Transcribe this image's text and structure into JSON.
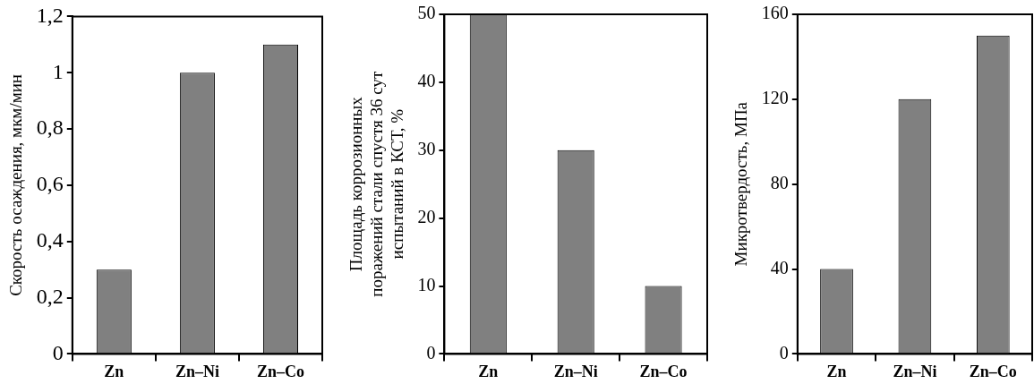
{
  "chart_data": [
    {
      "type": "bar",
      "ylabel": "Скорость осаждения, мкм/мин",
      "categories": [
        "Zn",
        "Zn–Ni",
        "Zn–Co"
      ],
      "values": [
        0.3,
        1,
        1.1
      ],
      "color": "#808080",
      "ylim": [
        0,
        1.2
      ],
      "yticks": [
        0,
        {
          "value": 0.2,
          "label": "0,2"
        },
        {
          "value": 0.4,
          "label": "0,4"
        },
        {
          "value": 0.6,
          "label": "0,6"
        },
        {
          "value": 0.8,
          "label": "0,8"
        },
        1,
        {
          "value": 1.2,
          "label": "1,2"
        }
      ],
      "grid": false,
      "legend": false
    },
    {
      "type": "bar",
      "ylabel": "Площадь коррозионных\nпоражений стали спустя 36 сут\nиспытаний в КСТ, %",
      "categories": [
        "Zn",
        "Zn–Ni",
        "Zn–Co"
      ],
      "values": [
        50,
        30,
        10
      ],
      "color": "#808080",
      "ylim": [
        0,
        50
      ],
      "yticks": [
        0,
        10,
        20,
        30,
        40,
        50
      ],
      "grid": false,
      "legend": false
    },
    {
      "type": "bar",
      "ylabel": "Микротвердость, МПа",
      "categories": [
        "Zn",
        "Zn–Ni",
        "Zn–Co"
      ],
      "values": [
        40,
        120,
        150
      ],
      "color": "#808080",
      "ylim": [
        0,
        160
      ],
      "yticks": [
        0,
        40,
        80,
        120,
        160
      ],
      "grid": false,
      "legend": false
    }
  ]
}
